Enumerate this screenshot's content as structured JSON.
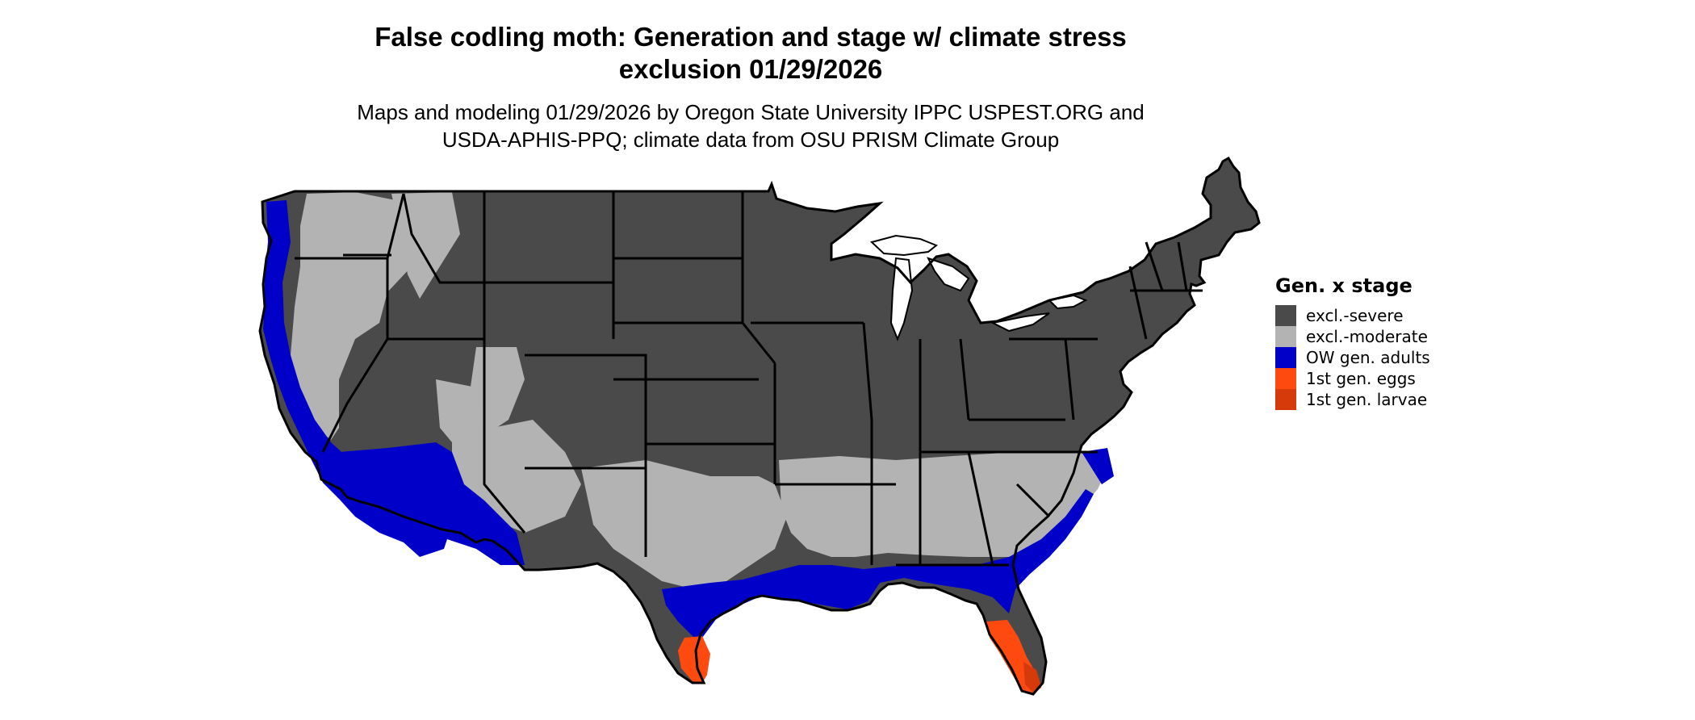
{
  "title": {
    "line1": "False codling moth: Generation and stage w/ climate stress",
    "line2": "exclusion 01/29/2026"
  },
  "subtitle": {
    "line1": "Maps and modeling 01/29/2026 by Oregon State University IPPC USPEST.ORG and",
    "line2": "USDA-APHIS-PPQ; climate data from OSU PRISM Climate Group"
  },
  "legend": {
    "title": "Gen. x stage",
    "items": [
      {
        "label": "excl.-severe",
        "color": "#4a4a4a"
      },
      {
        "label": "excl.-moderate",
        "color": "#b3b3b3"
      },
      {
        "label": "OW gen. adults",
        "color": "#0000c8"
      },
      {
        "label": "1st gen. eggs",
        "color": "#ff4a0f"
      },
      {
        "label": "1st gen. larvae",
        "color": "#d63a0a"
      }
    ]
  },
  "colors": {
    "severe": "#4a4a4a",
    "moderate": "#b3b3b3",
    "adults": "#0000c8",
    "eggs": "#ff4a0f",
    "larvae": "#d63a0a",
    "boundary": "#000000",
    "lakes": "#ffffff"
  }
}
